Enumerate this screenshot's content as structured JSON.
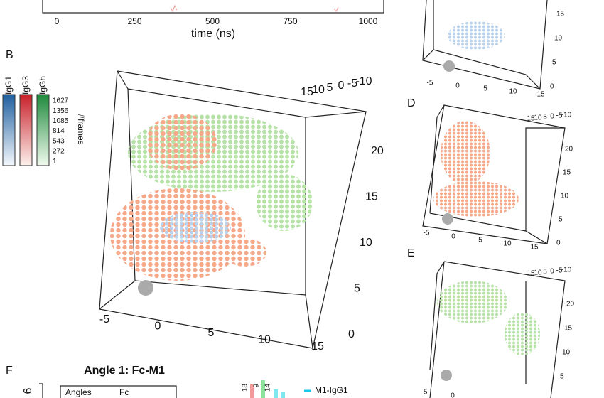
{
  "panel_a": {
    "xticks": [
      0,
      250,
      500,
      750,
      1000
    ],
    "xlabel": "time (ns)"
  },
  "panel_b": {
    "label": "B",
    "legend": {
      "titles": [
        "IgG1",
        "IgG3",
        "IgGh"
      ],
      "ticks": [
        1627,
        1356,
        1085,
        814,
        543,
        272,
        1
      ],
      "caption": "#frames"
    },
    "axis_top": [
      15,
      10,
      5,
      0,
      -5,
      -10
    ],
    "axis_right": [
      20,
      15,
      10,
      5,
      0
    ],
    "axis_bottom": [
      -5,
      0,
      5,
      10,
      15
    ]
  },
  "panel_c": {
    "axis_right": [
      15,
      10,
      5,
      0
    ],
    "axis_bottom": [
      -5,
      0,
      5,
      10,
      15
    ]
  },
  "panel_d": {
    "label": "D",
    "axis_top": [
      15,
      10,
      5,
      0,
      -5,
      -10
    ],
    "axis_right": [
      20,
      15,
      10,
      5,
      0
    ],
    "axis_bottom": [
      -5,
      0,
      5,
      10,
      15
    ]
  },
  "panel_e": {
    "label": "E",
    "axis_top": [
      15,
      10,
      5,
      0,
      -5,
      -10
    ],
    "axis_right": [
      20,
      15,
      10,
      5
    ],
    "axis_bottom": [
      -5,
      0
    ]
  },
  "panel_f": {
    "label": "F",
    "title": "Angle 1: Fc-M1",
    "ylabel": "6",
    "table": [
      "Angles",
      "Fc"
    ],
    "bar_labels": [
      18,
      9,
      14
    ],
    "legend": "M1-IgG1"
  }
}
